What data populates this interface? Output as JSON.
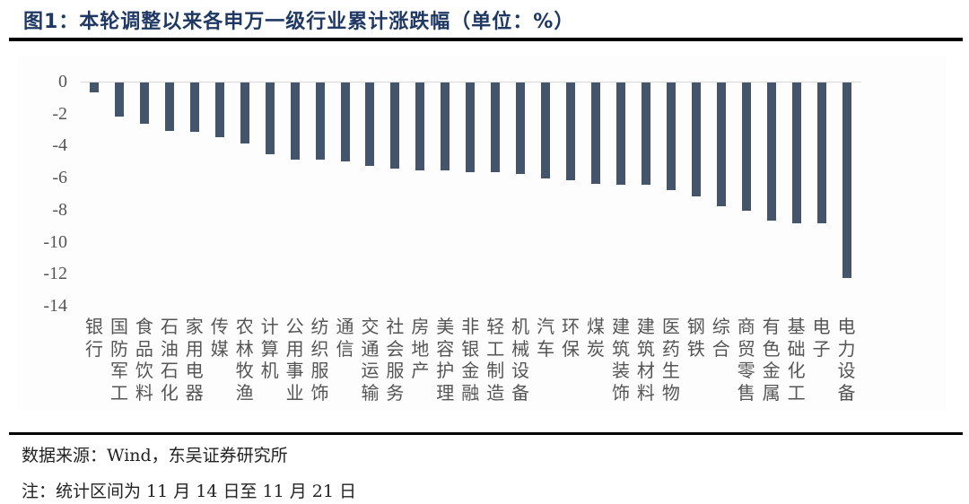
{
  "title": "图1：本轮调整以来各申万一级行业累计涨跌幅（单位：%）",
  "footer": {
    "source": "数据来源：Wind，东吴证券研究所",
    "note": "注：统计区间为 11 月 14 日至 11 月 21 日"
  },
  "colors": {
    "bar": "#44546A",
    "title": "#1F3864",
    "axis_text": "#555555"
  },
  "chart_data": {
    "type": "bar",
    "title": "本轮调整以来各申万一级行业累计涨跌幅（单位：%）",
    "xlabel": "",
    "ylabel": "",
    "ylim": [
      -14,
      0
    ],
    "yticks": [
      0,
      -2,
      -4,
      -6,
      -8,
      -10,
      -12,
      -14
    ],
    "grid": false,
    "legend": null,
    "categories": [
      "银行",
      "国防军工",
      "食品饮料",
      "石油石化",
      "家用电器",
      "传媒",
      "农林牧渔",
      "计算机",
      "公用事业",
      "纺织服饰",
      "通信",
      "交通运输",
      "社会服务",
      "房地产",
      "美容护理",
      "非银金融",
      "轻工制造",
      "机械设备",
      "汽车",
      "环保",
      "煤炭",
      "建筑装饰",
      "建筑材料",
      "医药生物",
      "钢铁",
      "综合",
      "商贸零售",
      "有色金属",
      "基础化工",
      "电子",
      "电力设备"
    ],
    "values": [
      -0.6,
      -2.1,
      -2.6,
      -3.0,
      -3.1,
      -3.4,
      -3.8,
      -4.5,
      -4.8,
      -4.8,
      -4.9,
      -5.2,
      -5.4,
      -5.5,
      -5.5,
      -5.6,
      -5.6,
      -5.7,
      -6.0,
      -6.1,
      -6.3,
      -6.4,
      -6.4,
      -6.7,
      -7.1,
      -7.7,
      -8.0,
      -8.6,
      -8.8,
      -8.8,
      -12.2
    ]
  }
}
